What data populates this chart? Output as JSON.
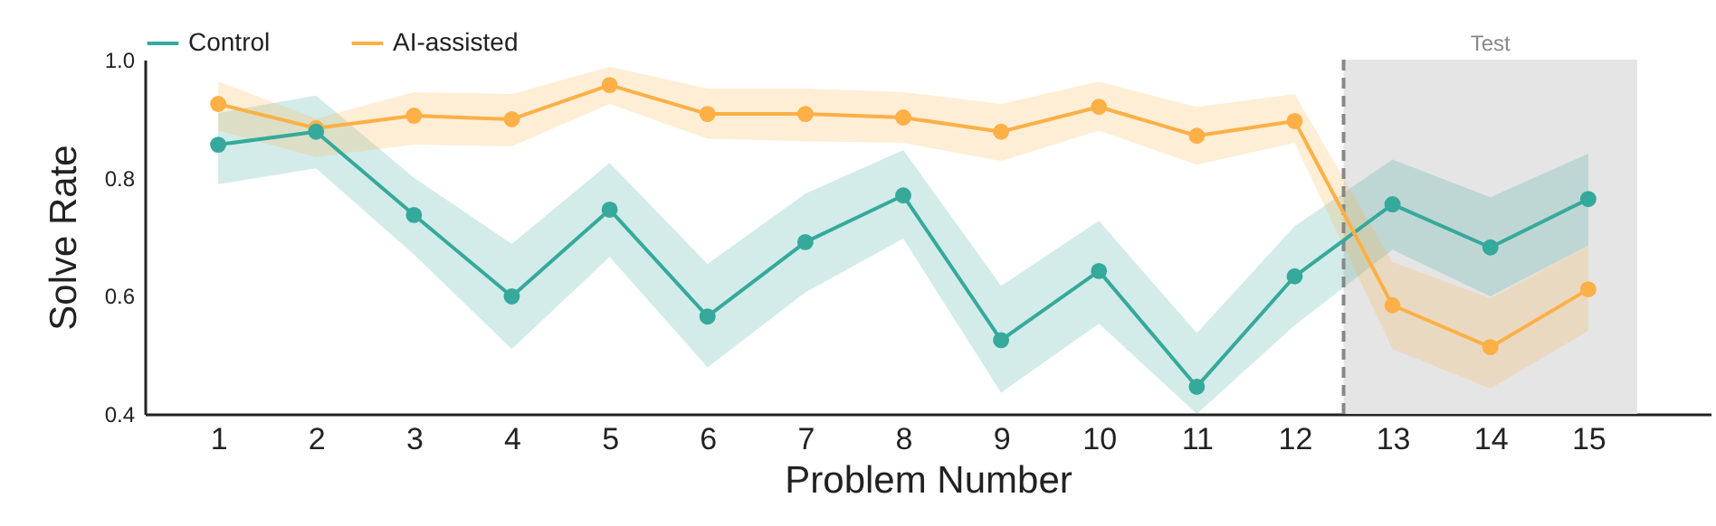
{
  "chart_data": {
    "type": "line",
    "xlabel": "Problem Number",
    "ylabel": "Solve Rate",
    "x": [
      1,
      2,
      3,
      4,
      5,
      6,
      7,
      8,
      9,
      10,
      11,
      12,
      13,
      14,
      15
    ],
    "xlim": [
      0.25,
      16.25
    ],
    "xticks": [
      1,
      2,
      3,
      4,
      5,
      6,
      7,
      8,
      9,
      10,
      11,
      12,
      13,
      14,
      15
    ],
    "ylim": [
      0.4,
      1.0
    ],
    "yticks": [
      {
        "value": 0.4,
        "label": "0.4"
      },
      {
        "value": 0.6,
        "label": "0.6"
      },
      {
        "value": 0.8,
        "label": "0.8"
      },
      {
        "value": 1.0,
        "label": "1.0"
      }
    ],
    "series": [
      {
        "name": "Control",
        "color": "#35a99c",
        "values": [
          0.856,
          0.878,
          0.737,
          0.599,
          0.746,
          0.565,
          0.691,
          0.77,
          0.525,
          0.642,
          0.446,
          0.633,
          0.755,
          0.682,
          0.764
        ],
        "lower": [
          0.789,
          0.816,
          0.67,
          0.51,
          0.666,
          0.479,
          0.606,
          0.697,
          0.436,
          0.553,
          0.4,
          0.55,
          0.678,
          0.599,
          0.685
        ],
        "upper": [
          0.91,
          0.939,
          0.8,
          0.688,
          0.825,
          0.654,
          0.773,
          0.847,
          0.617,
          0.727,
          0.537,
          0.718,
          0.831,
          0.767,
          0.841
        ]
      },
      {
        "name": "AI-assisted",
        "color": "#fdb046",
        "values": [
          0.925,
          0.884,
          0.905,
          0.899,
          0.957,
          0.908,
          0.908,
          0.902,
          0.878,
          0.92,
          0.871,
          0.896,
          0.584,
          0.513,
          0.611
        ],
        "lower": [
          0.88,
          0.835,
          0.856,
          0.853,
          0.925,
          0.866,
          0.862,
          0.859,
          0.828,
          0.88,
          0.822,
          0.859,
          0.51,
          0.443,
          0.541
        ],
        "upper": [
          0.963,
          0.9,
          0.945,
          0.942,
          0.988,
          0.951,
          0.951,
          0.945,
          0.925,
          0.963,
          0.92,
          0.942,
          0.657,
          0.596,
          0.685
        ]
      }
    ],
    "ref_lines": [
      {
        "axis": "x",
        "value": 12.5,
        "color": "#888888",
        "line_style": "dashed"
      }
    ],
    "bands": [
      {
        "axis": "x",
        "from": 12.5,
        "to": 15.5,
        "label": "Test",
        "color": "#e5e5e5"
      }
    ],
    "legend": "top",
    "grid": false,
    "marker": "circle",
    "line_style": "solid"
  }
}
